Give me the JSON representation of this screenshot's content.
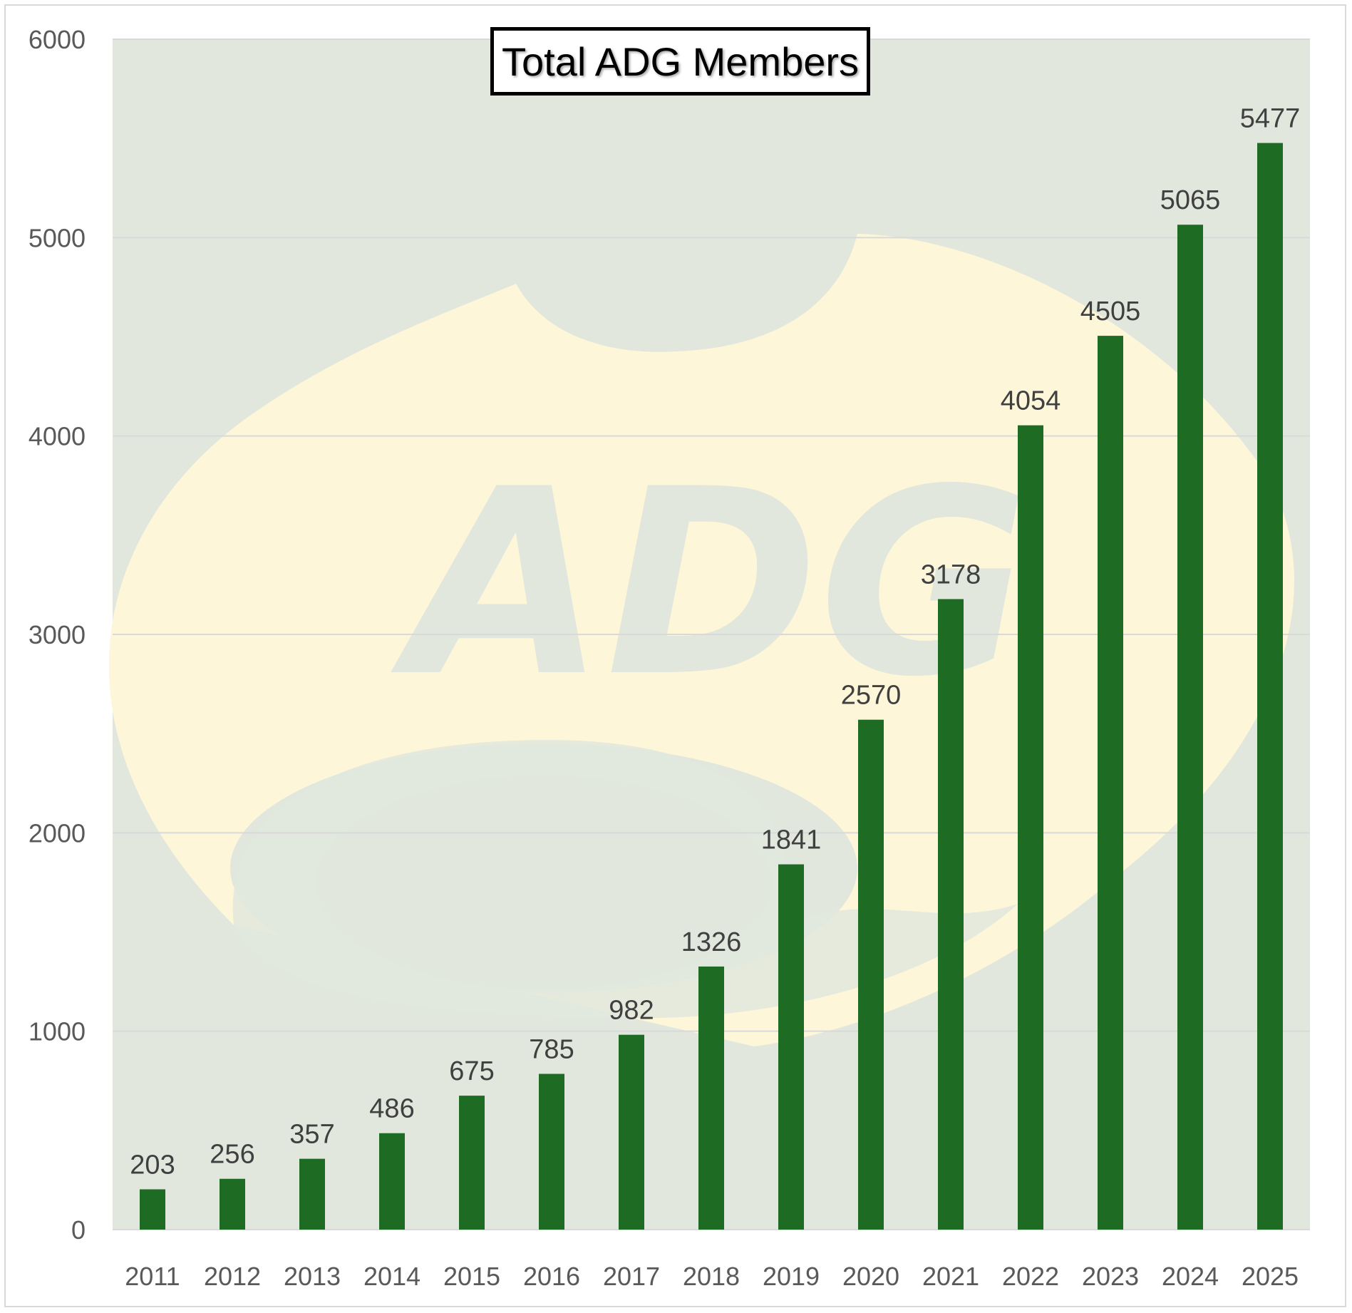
{
  "colors": {
    "plot_background": "#e1e7dd",
    "watermark": "#fdf6d9",
    "bar": "#1e6b24",
    "gridline": "#d9d9d9",
    "axis_text": "#595959",
    "data_label_text": "#404040"
  },
  "chart_data": {
    "type": "bar",
    "title": "Total ADG Members",
    "xlabel": "",
    "ylabel": "",
    "categories": [
      "2011",
      "2012",
      "2013",
      "2014",
      "2015",
      "2016",
      "2017",
      "2018",
      "2019",
      "2020",
      "2021",
      "2022",
      "2023",
      "2024",
      "2025"
    ],
    "values": [
      203,
      256,
      357,
      486,
      675,
      785,
      982,
      1326,
      1841,
      2570,
      3178,
      4054,
      4505,
      5065,
      5477
    ],
    "ylim": [
      0,
      6000
    ],
    "yticks": [
      0,
      1000,
      2000,
      3000,
      4000,
      5000,
      6000
    ],
    "grid": true,
    "legend": "none",
    "data_labels": true,
    "watermark_text": "ADG"
  }
}
